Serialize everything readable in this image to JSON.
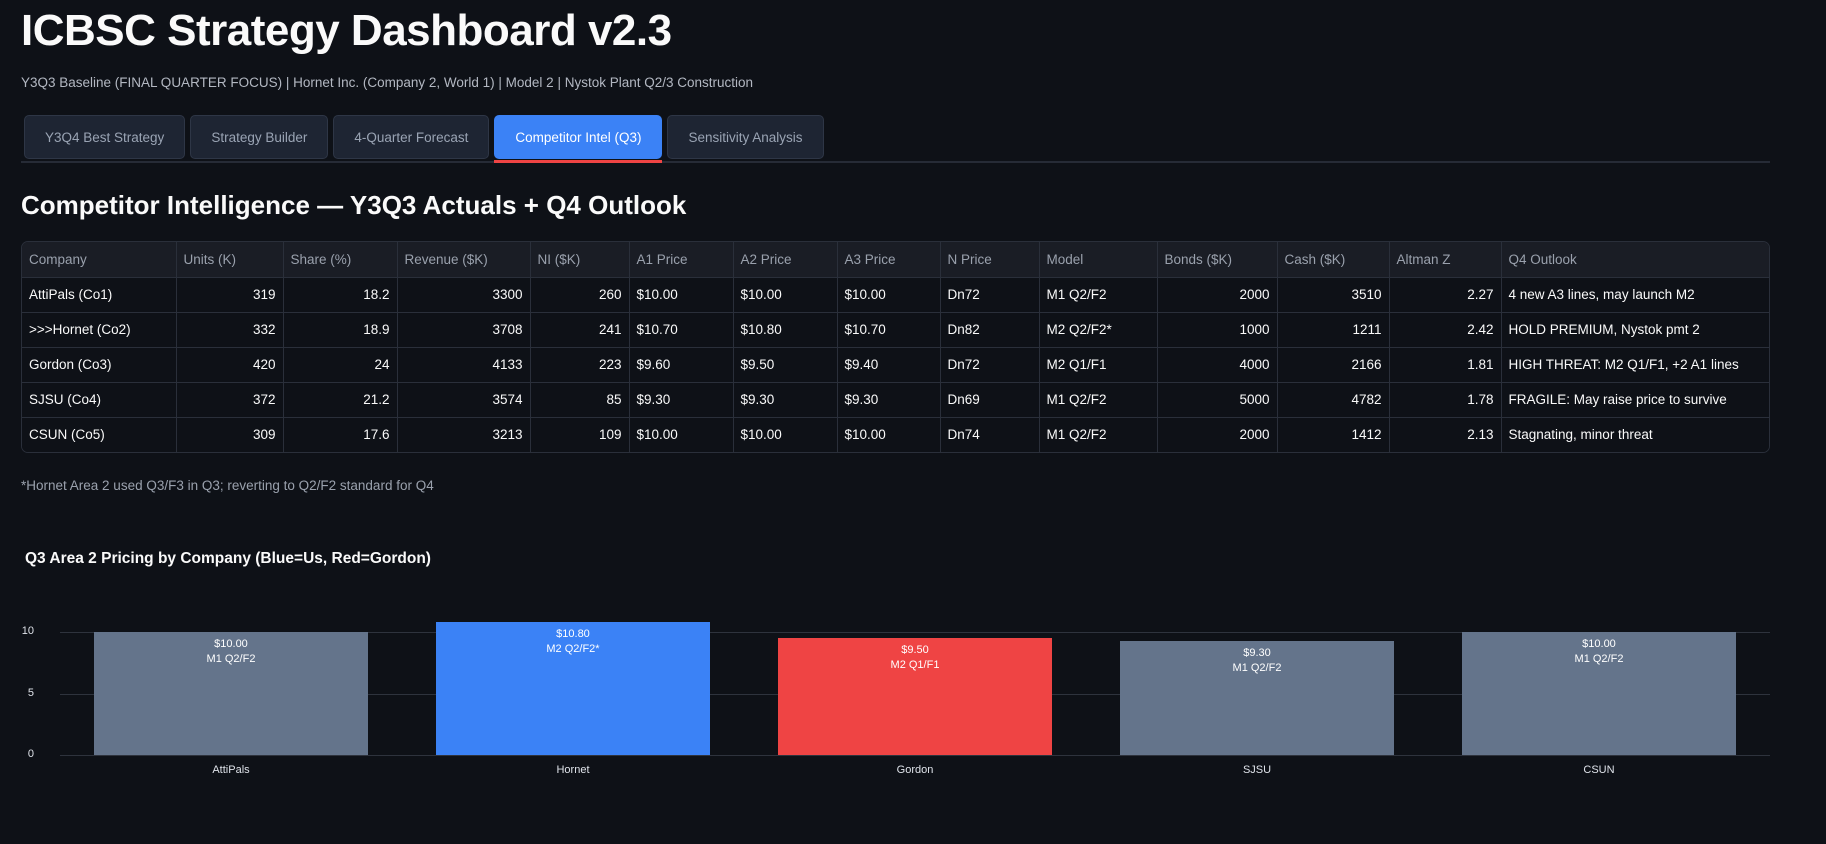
{
  "header": {
    "title": "ICBSC Strategy Dashboard v2.3",
    "subtitle": "Y3Q3 Baseline (FINAL QUARTER FOCUS) | Hornet Inc. (Company 2, World 1) | Model 2 | Nystok Plant Q2/3 Construction"
  },
  "tabs": [
    {
      "label": "Y3Q4 Best Strategy",
      "active": false
    },
    {
      "label": "Strategy Builder",
      "active": false
    },
    {
      "label": "4-Quarter Forecast",
      "active": false
    },
    {
      "label": "Competitor Intel (Q3)",
      "active": true
    },
    {
      "label": "Sensitivity Analysis",
      "active": false
    }
  ],
  "colors": {
    "accent": "#3b82f6",
    "active_tab_underline": "#ef4444",
    "bar_us": "#3b82f6",
    "bar_gordon": "#ef4444",
    "bar_other": "#64748b",
    "background": "#0e1117"
  },
  "section": {
    "title": "Competitor Intelligence — Y3Q3 Actuals + Q4 Outlook"
  },
  "table": {
    "columns": [
      "Company",
      "Units (K)",
      "Share (%)",
      "Revenue ($K)",
      "NI ($K)",
      "A1 Price",
      "A2 Price",
      "A3 Price",
      "N Price",
      "Model",
      "Bonds ($K)",
      "Cash ($K)",
      "Altman Z",
      "Q4 Outlook"
    ],
    "rows": [
      [
        "AttiPals (Co1)",
        "319",
        "18.2",
        "3300",
        "260",
        "$10.00",
        "$10.00",
        "$10.00",
        "Dn72",
        "M1 Q2/F2",
        "2000",
        "3510",
        "2.27",
        "4 new A3 lines, may launch M2"
      ],
      [
        ">>>Hornet (Co2)",
        "332",
        "18.9",
        "3708",
        "241",
        "$10.70",
        "$10.80",
        "$10.70",
        "Dn82",
        "M2 Q2/F2*",
        "1000",
        "1211",
        "2.42",
        "HOLD PREMIUM, Nystok pmt 2"
      ],
      [
        "Gordon (Co3)",
        "420",
        "24",
        "4133",
        "223",
        "$9.60",
        "$9.50",
        "$9.40",
        "Dn72",
        "M2 Q1/F1",
        "4000",
        "2166",
        "1.81",
        "HIGH THREAT: M2 Q1/F1, +2 A1 lines"
      ],
      [
        "SJSU (Co4)",
        "372",
        "21.2",
        "3574",
        "85",
        "$9.30",
        "$9.30",
        "$9.30",
        "Dn69",
        "M1 Q2/F2",
        "5000",
        "4782",
        "1.78",
        "FRAGILE: May raise price to survive"
      ],
      [
        "CSUN (Co5)",
        "309",
        "17.6",
        "3213",
        "109",
        "$10.00",
        "$10.00",
        "$10.00",
        "Dn74",
        "M1 Q2/F2",
        "2000",
        "1412",
        "2.13",
        "Stagnating, minor threat"
      ]
    ]
  },
  "footnote": "*Hornet Area 2 used Q3/F3 in Q3; reverting to Q2/F2 standard for Q4",
  "chart_data": {
    "type": "bar",
    "title": "Q3 Area 2 Pricing by Company (Blue=Us, Red=Gordon)",
    "categories": [
      "AttiPals",
      "Hornet",
      "Gordon",
      "SJSU",
      "CSUN"
    ],
    "values": [
      10.0,
      10.8,
      9.5,
      9.3,
      10.0
    ],
    "value_labels": [
      "$10.00",
      "$10.80",
      "$9.50",
      "$9.30",
      "$10.00"
    ],
    "model_labels": [
      "M1 Q2/F2",
      "M2 Q2/F2*",
      "M2 Q1/F1",
      "M1 Q2/F2",
      "M1 Q2/F2"
    ],
    "bar_colors": [
      "#64748b",
      "#3b82f6",
      "#ef4444",
      "#64748b",
      "#64748b"
    ],
    "xlabel": "",
    "ylabel": "",
    "yticks": [
      "0",
      "5",
      "10"
    ],
    "ylim": [
      0,
      11
    ],
    "grid": true,
    "legend": "none"
  }
}
